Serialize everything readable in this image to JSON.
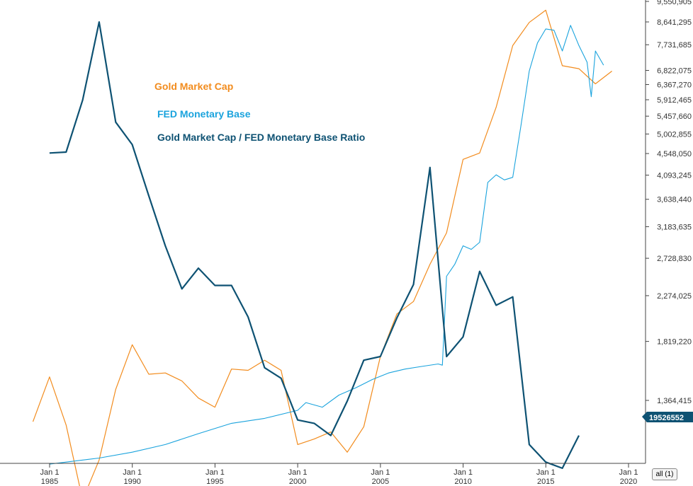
{
  "chart_data": {
    "type": "line",
    "title": "",
    "xlabel": "",
    "ylabel": "",
    "x_ticks": [
      {
        "date": "1985-01-01",
        "line1": "Jan 1",
        "line2": "1985"
      },
      {
        "date": "1990-01-01",
        "line1": "Jan 1",
        "line2": "1990"
      },
      {
        "date": "1995-01-01",
        "line1": "Jan 1",
        "line2": "1995"
      },
      {
        "date": "2000-01-01",
        "line1": "Jan 1",
        "line2": "2000"
      },
      {
        "date": "2005-01-01",
        "line1": "Jan 1",
        "line2": "2005"
      },
      {
        "date": "2010-01-01",
        "line1": "Jan 1",
        "line2": "2010"
      },
      {
        "date": "2015-01-01",
        "line1": "Jan 1",
        "line2": "2015"
      },
      {
        "date": "2020-01-01",
        "line1": "Jan 1",
        "line2": "2020"
      }
    ],
    "y_ticks": [
      "1,364,415",
      "1,819,220",
      "2,274,025",
      "2,728,830",
      "3,183,635",
      "3,638,440",
      "4,093,245",
      "4,548,050",
      "5,002,855",
      "5,457,660",
      "5,912,465",
      "6,367,270",
      "6,822,075",
      "7,731,685",
      "8,641,295",
      "9,550,905"
    ],
    "y_axis_side": "right",
    "grid": false,
    "legend": {
      "placement": "top-left"
    },
    "current_value_badge": "19526552",
    "series": [
      {
        "name": "Gold Market Cap",
        "color": "#f28c1e",
        "values": [
          [
            "1983-12-31",
            1230000
          ],
          [
            "1984-12-31",
            1530000
          ],
          [
            "1985-12-31",
            1210000
          ],
          [
            "1986-12-31",
            840000
          ],
          [
            "1987-12-31",
            1020000
          ],
          [
            "1988-12-31",
            1440000
          ],
          [
            "1989-12-31",
            1790000
          ],
          [
            "1990-12-31",
            1550000
          ],
          [
            "1991-12-31",
            1560000
          ],
          [
            "1992-12-31",
            1500000
          ],
          [
            "1993-12-31",
            1380000
          ],
          [
            "1994-12-31",
            1320000
          ],
          [
            "1995-12-31",
            1590000
          ],
          [
            "1996-12-31",
            1580000
          ],
          [
            "1997-12-31",
            1660000
          ],
          [
            "1998-12-31",
            1580000
          ],
          [
            "1999-12-31",
            1100000
          ],
          [
            "2000-12-31",
            1130000
          ],
          [
            "2001-12-31",
            1170000
          ],
          [
            "2002-12-31",
            1060000
          ],
          [
            "2003-12-31",
            1200000
          ],
          [
            "2004-12-31",
            1690000
          ],
          [
            "2005-12-31",
            2080000
          ],
          [
            "2006-12-31",
            2210000
          ],
          [
            "2007-12-31",
            2650000
          ],
          [
            "2008-12-31",
            3090000
          ],
          [
            "2009-12-31",
            4420000
          ],
          [
            "2010-12-31",
            4560000
          ],
          [
            "2011-12-31",
            5700000
          ],
          [
            "2012-12-31",
            7700000
          ],
          [
            "2013-12-31",
            8620000
          ],
          [
            "2014-12-31",
            9150000
          ],
          [
            "2015-12-31",
            6980000
          ],
          [
            "2016-12-31",
            6880000
          ],
          [
            "2017-12-31",
            6390000
          ],
          [
            "2018-12-31",
            6800000
          ]
        ]
      },
      {
        "name": "FED Monetary Base",
        "color": "#1aa3dd",
        "values": [
          [
            "1984-12-31",
            1000000
          ],
          [
            "1987-12-31",
            1030000
          ],
          [
            "1989-12-31",
            1060000
          ],
          [
            "1991-12-31",
            1100000
          ],
          [
            "1993-12-31",
            1160000
          ],
          [
            "1995-12-31",
            1220000
          ],
          [
            "1997-12-31",
            1250000
          ],
          [
            "1999-12-31",
            1300000
          ],
          [
            "2000-06-30",
            1350000
          ],
          [
            "2001-06-30",
            1320000
          ],
          [
            "2002-06-30",
            1400000
          ],
          [
            "2003-06-30",
            1450000
          ],
          [
            "2004-06-30",
            1510000
          ],
          [
            "2005-06-30",
            1560000
          ],
          [
            "2006-06-30",
            1590000
          ],
          [
            "2007-06-30",
            1610000
          ],
          [
            "2008-06-30",
            1630000
          ],
          [
            "2008-09-30",
            1620000
          ],
          [
            "2008-12-31",
            2500000
          ],
          [
            "2009-06-30",
            2650000
          ],
          [
            "2009-12-31",
            2900000
          ],
          [
            "2010-06-30",
            2850000
          ],
          [
            "2010-12-31",
            2950000
          ],
          [
            "2011-06-30",
            3950000
          ],
          [
            "2011-12-31",
            4100000
          ],
          [
            "2012-06-30",
            4000000
          ],
          [
            "2012-12-31",
            4050000
          ],
          [
            "2013-06-30",
            5200000
          ],
          [
            "2013-12-31",
            6800000
          ],
          [
            "2014-06-30",
            7800000
          ],
          [
            "2014-12-31",
            8350000
          ],
          [
            "2015-06-30",
            8300000
          ],
          [
            "2015-12-31",
            7500000
          ],
          [
            "2016-06-30",
            8500000
          ],
          [
            "2016-12-31",
            7700000
          ],
          [
            "2017-06-30",
            7100000
          ],
          [
            "2017-09-30",
            6000000
          ],
          [
            "2017-12-31",
            7500000
          ],
          [
            "2018-06-30",
            7000000
          ]
        ]
      },
      {
        "name": "Gold Market Cap / FED Monetary Base Ratio",
        "color": "#0e5273",
        "values": [
          [
            "1984-12-31",
            4560000
          ],
          [
            "1985-12-31",
            4580000
          ],
          [
            "1986-12-31",
            5900000
          ],
          [
            "1987-12-31",
            8640000
          ],
          [
            "1988-12-31",
            5300000
          ],
          [
            "1989-12-31",
            4750000
          ],
          [
            "1990-12-31",
            3700000
          ],
          [
            "1991-12-31",
            2900000
          ],
          [
            "1992-12-31",
            2350000
          ],
          [
            "1993-12-31",
            2600000
          ],
          [
            "1994-12-31",
            2390000
          ],
          [
            "1995-12-31",
            2390000
          ],
          [
            "1996-12-31",
            2050000
          ],
          [
            "1997-12-31",
            1600000
          ],
          [
            "1998-12-31",
            1520000
          ],
          [
            "1999-12-31",
            1240000
          ],
          [
            "2000-12-31",
            1220000
          ],
          [
            "2001-12-31",
            1150000
          ],
          [
            "2002-12-31",
            1360000
          ],
          [
            "2003-12-31",
            1660000
          ],
          [
            "2004-12-31",
            1690000
          ],
          [
            "2005-12-31",
            2040000
          ],
          [
            "2006-12-31",
            2400000
          ],
          [
            "2007-12-31",
            4250000
          ],
          [
            "2008-12-31",
            1690000
          ],
          [
            "2009-12-31",
            1860000
          ],
          [
            "2010-12-31",
            2560000
          ],
          [
            "2011-12-31",
            2170000
          ],
          [
            "2012-12-31",
            2260000
          ],
          [
            "2013-12-31",
            1100000
          ],
          [
            "2014-12-31",
            1010000
          ],
          [
            "2015-12-31",
            980000
          ],
          [
            "2016-12-31",
            1150000
          ]
        ]
      }
    ]
  },
  "range_button": "all (1)"
}
